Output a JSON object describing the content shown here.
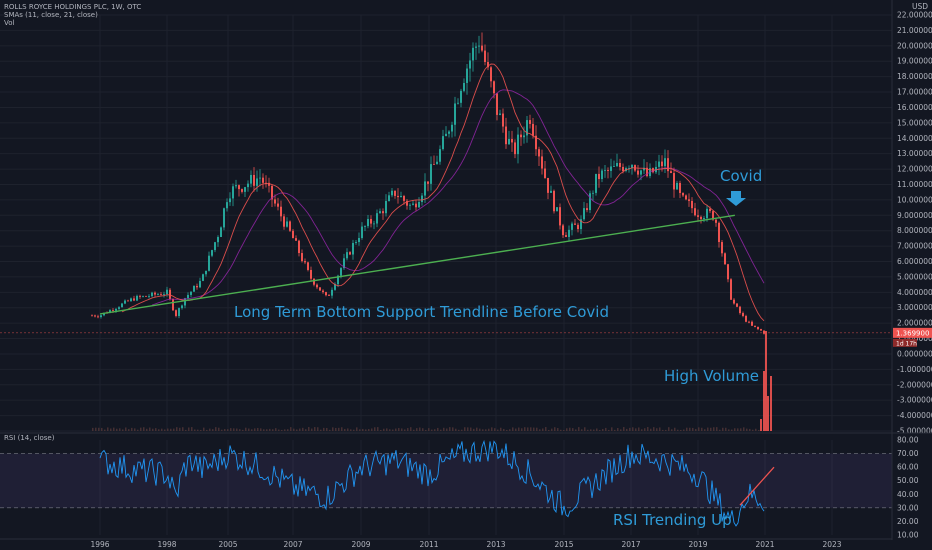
{
  "header": {
    "symbol_line": "ROLLS ROYCE HOLDINGS PLC, 1W, OTC",
    "sma_line": "SMAs (11, close, 21, close)",
    "vol_label": "Vol"
  },
  "rsi_pane": {
    "label": "RSI (14, close)"
  },
  "annotations": {
    "trendline_text": "Long Term Bottom Support Trendline Before Covid",
    "covid_text": "Covid",
    "volume_text": "High Volume",
    "rsi_text": "RSI Trending Up"
  },
  "price_scale": {
    "currency": "USD",
    "last_price_label": "1.369900",
    "countdown_label": "1d 17h"
  },
  "colors": {
    "background": "#131722",
    "candle_up": "#26a69a",
    "candle_down": "#ef5350",
    "sma_fast": "#ef5350",
    "sma_slow": "#9c27b0",
    "trendline": "#4caf50",
    "annotation": "#2f9bd7",
    "rsi_line": "#2196f3",
    "rsi_band": "#7e57c2",
    "rsi_trend": "#ef5350"
  },
  "chart_data": [
    {
      "type": "candlestick",
      "title": "ROLLS ROYCE HOLDINGS PLC, 1W, OTC",
      "x_ticks": [
        "1996",
        "1998",
        "2005",
        "2007",
        "2009",
        "2011",
        "2013",
        "2015",
        "2017",
        "2019",
        "2021",
        "2023"
      ],
      "y_ticks": [
        "22.000000",
        "21.000000",
        "20.000000",
        "19.000000",
        "18.000000",
        "17.000000",
        "16.000000",
        "15.000000",
        "14.000000",
        "13.000000",
        "12.000000",
        "11.000000",
        "10.000000",
        "9.000000",
        "8.000000",
        "7.000000",
        "6.000000",
        "5.000000",
        "4.000000",
        "3.000000",
        "2.000000",
        "1.000000",
        "0.000000",
        "-1.000000",
        "-2.000000",
        "-3.000000",
        "-4.000000",
        "-5.000000"
      ],
      "ylim": [
        -5,
        22
      ],
      "close_series": {
        "x": [
          1996,
          1997,
          1998,
          1999,
          2000,
          2001,
          2002,
          2003,
          2004,
          2005,
          2006,
          2007,
          2007.5,
          2008,
          2008.5,
          2009,
          2009.5,
          2010,
          2010.5,
          2011,
          2011.5,
          2012,
          2012.5,
          2013,
          2013.5,
          2014,
          2014.5,
          2015,
          2015.5,
          2016,
          2016.5,
          2017,
          2017.5,
          2018,
          2018.5,
          2019,
          2019.5,
          2020,
          2020.3,
          2020.6,
          2021
        ],
        "close": [
          2.5,
          3.6,
          4.0,
          2.5,
          3.6,
          4.2,
          4.8,
          6.5,
          8.0,
          10.5,
          11.5,
          7.5,
          5.0,
          3.6,
          6.0,
          8.0,
          9.0,
          10.5,
          9.5,
          11.5,
          14.0,
          18.0,
          20.5,
          16.0,
          13.0,
          15.5,
          11.0,
          7.8,
          8.5,
          11.5,
          12.0,
          12.5,
          11.5,
          12.5,
          10.0,
          9.2,
          9.0,
          3.5,
          2.5,
          1.8,
          1.37
        ]
      },
      "trendline": {
        "from": {
          "x": 1996,
          "y": 2.6
        },
        "to": {
          "x": 2020.1,
          "y": 9.0
        },
        "label": "Long Term Bottom Support Trendline Before Covid"
      },
      "annotations": [
        "Covid",
        "High Volume"
      ],
      "last_price": 1.3699
    },
    {
      "type": "line",
      "title": "RSI (14, close)",
      "y_ticks": [
        "80.00",
        "70.00",
        "60.00",
        "50.00",
        "40.00",
        "30.00",
        "20.00",
        "10.00"
      ],
      "ylim": [
        10,
        80
      ],
      "bands": [
        30,
        70
      ],
      "series": [
        {
          "x": [
            1996,
            1997,
            1998,
            1999,
            2000,
            2001,
            2002,
            2003,
            2004,
            2005,
            2006,
            2007,
            2008,
            2009,
            2010,
            2011,
            2012,
            2013,
            2014,
            2015,
            2016,
            2017,
            2018,
            2019,
            2020,
            2020.5,
            2021
          ],
          "values": [
            65,
            58,
            55,
            38,
            60,
            65,
            58,
            62,
            65,
            70,
            60,
            45,
            38,
            60,
            65,
            55,
            70,
            75,
            55,
            30,
            50,
            70,
            65,
            55,
            20,
            40,
            35
          ]
        }
      ],
      "annotations": [
        "RSI Trending Up"
      ]
    }
  ]
}
